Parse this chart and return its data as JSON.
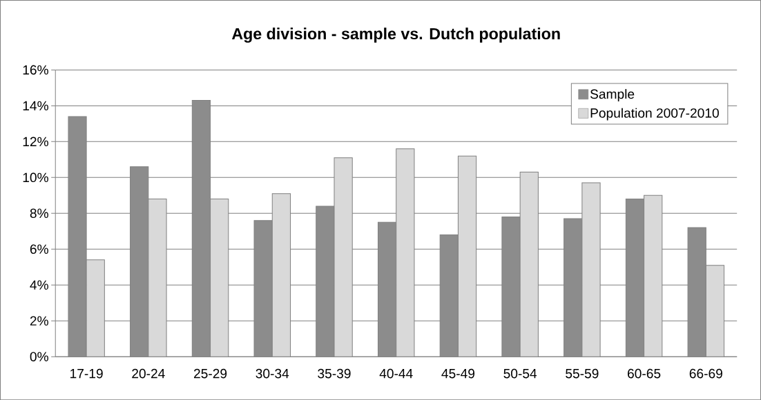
{
  "chart_data": {
    "type": "bar",
    "title": "Age division - sample vs. Dutch population",
    "categories": [
      "17-19",
      "20-24",
      "25-29",
      "30-34",
      "35-39",
      "40-44",
      "45-49",
      "50-54",
      "55-59",
      "60-65",
      "66-69"
    ],
    "series": [
      {
        "name": "Sample",
        "color": "#8c8c8c",
        "values": [
          13.4,
          10.6,
          14.3,
          7.6,
          8.4,
          7.5,
          6.8,
          7.8,
          7.7,
          8.8,
          7.2
        ]
      },
      {
        "name": "Population 2007-2010",
        "color": "#d9d9d9",
        "values": [
          5.4,
          8.8,
          8.8,
          9.1,
          11.1,
          11.6,
          11.2,
          10.3,
          9.7,
          9.0,
          5.1
        ]
      }
    ],
    "ylim": [
      0,
      16
    ],
    "yticks": [
      {
        "value": 0,
        "label": "0%"
      },
      {
        "value": 2,
        "label": "2%"
      },
      {
        "value": 4,
        "label": "4%"
      },
      {
        "value": 6,
        "label": "6%"
      },
      {
        "value": 8,
        "label": "8%"
      },
      {
        "value": 10,
        "label": "10%"
      },
      {
        "value": 12,
        "label": "12%"
      },
      {
        "value": 14,
        "label": "14%"
      },
      {
        "value": 16,
        "label": "16%"
      }
    ],
    "grid": "y",
    "legend": "top right"
  }
}
